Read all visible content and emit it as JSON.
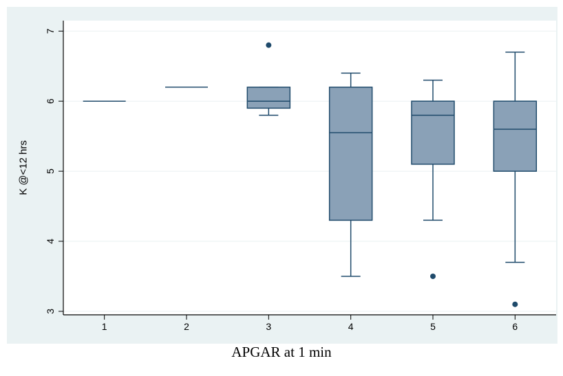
{
  "chart_data": {
    "type": "box",
    "title": "",
    "xlabel": "APGAR at 1 min",
    "ylabel": "K @<12 hrs",
    "categories": [
      "1",
      "2",
      "3",
      "4",
      "5",
      "6"
    ],
    "ylim": [
      2.95,
      7.15
    ],
    "yticks": [
      "3",
      "4",
      "5",
      "6",
      "7"
    ],
    "grid": true,
    "boxes": [
      {
        "category": "1",
        "whisker_low": 6.0,
        "q1": 6.0,
        "median": 6.0,
        "q3": 6.0,
        "whisker_high": 6.0,
        "outliers": []
      },
      {
        "category": "2",
        "whisker_low": 6.2,
        "q1": 6.2,
        "median": 6.2,
        "q3": 6.2,
        "whisker_high": 6.2,
        "outliers": []
      },
      {
        "category": "3",
        "whisker_low": 5.8,
        "q1": 5.9,
        "median": 6.0,
        "q3": 6.2,
        "whisker_high": 6.2,
        "outliers": [
          6.8
        ]
      },
      {
        "category": "4",
        "whisker_low": 3.5,
        "q1": 4.3,
        "median": 5.55,
        "q3": 6.2,
        "whisker_high": 6.4,
        "outliers": []
      },
      {
        "category": "5",
        "whisker_low": 4.3,
        "q1": 5.1,
        "median": 5.8,
        "q3": 6.0,
        "whisker_high": 6.3,
        "outliers": [
          3.5
        ]
      },
      {
        "category": "6",
        "whisker_low": 3.7,
        "q1": 5.0,
        "median": 5.6,
        "q3": 6.0,
        "whisker_high": 6.7,
        "outliers": [
          3.1
        ]
      }
    ],
    "colors": {
      "outer_background": "#eaf2f3",
      "plot_background": "#ffffff",
      "box_fill": "#8aa1b7",
      "line": "#1f4a6b",
      "grid": "#eaf0f2"
    }
  }
}
